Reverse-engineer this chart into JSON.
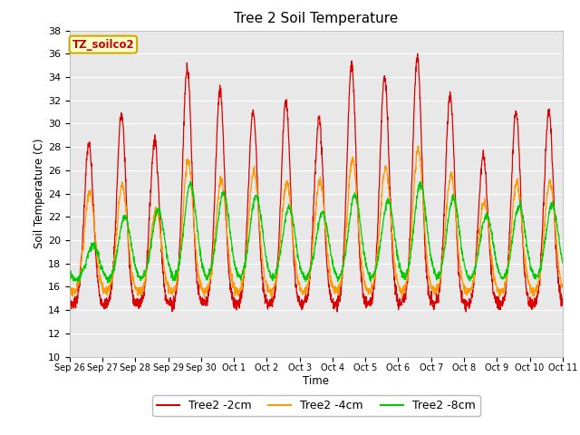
{
  "title": "Tree 2 Soil Temperature",
  "xlabel": "Time",
  "ylabel": "Soil Temperature (C)",
  "ylim": [
    10,
    38
  ],
  "yticks": [
    10,
    12,
    14,
    16,
    18,
    20,
    22,
    24,
    26,
    28,
    30,
    32,
    34,
    36,
    38
  ],
  "annotation_text": "TZ_soilco2",
  "annotation_color": "#cc0000",
  "annotation_bg": "#ffffcc",
  "annotation_border": "#ccaa00",
  "line_colors": {
    "2cm": "#dd0000",
    "4cm": "#ff9900",
    "8cm": "#00cc00"
  },
  "legend_labels": [
    "Tree2 -2cm",
    "Tree2 -4cm",
    "Tree2 -8cm"
  ],
  "bg_color": "#e8e8e8",
  "tick_labels": [
    "Sep 26",
    "Sep 27",
    "Sep 28",
    "Sep 29",
    "Sep 30",
    "Oct 1",
    "Oct 2",
    "Oct 3",
    "Oct 4",
    "Oct 5",
    "Oct 6",
    "Oct 7",
    "Oct 8",
    "Oct 9",
    "Oct 10",
    "Oct 11"
  ],
  "num_days": 15,
  "points_per_day": 144
}
